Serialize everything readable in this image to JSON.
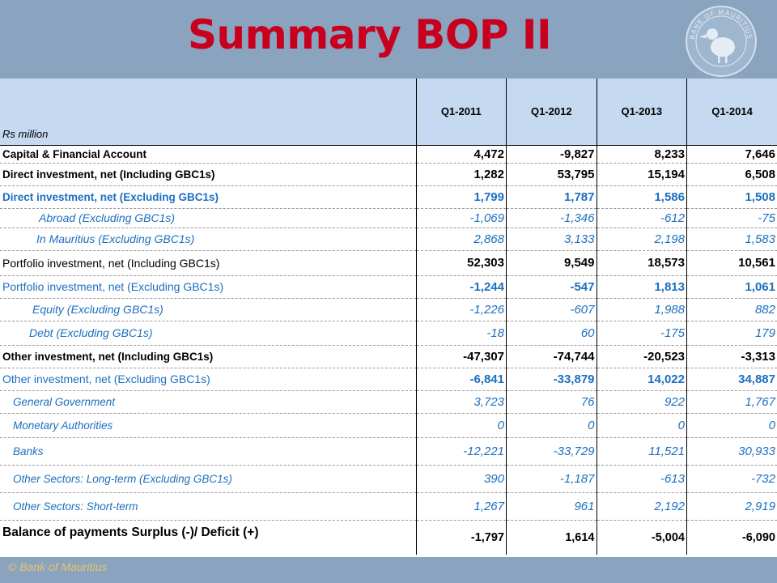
{
  "title": "Summary BOP II",
  "logo": {
    "icon": "bank-of-mauritius-seal-icon",
    "text": "BANK OF MAURITIUS"
  },
  "table": {
    "unit_label": "Rs million",
    "columns": [
      "Q1-2011",
      "Q1-2012",
      "Q1-2013",
      "Q1-2014"
    ],
    "rows": [
      {
        "label": "Capital & Financial Account",
        "values": [
          "4,472",
          "-9,827",
          "8,233",
          "7,646"
        ]
      },
      {
        "label": "Direct investment, net (Including GBC1s)",
        "values": [
          "1,282",
          "53,795",
          "15,194",
          "6,508"
        ]
      },
      {
        "label": "Direct investment, net (Excluding GBC1s)",
        "values": [
          "1,799",
          "1,787",
          "1,586",
          "1,508"
        ]
      },
      {
        "label": "Abroad  (Excluding GBC1s)",
        "values": [
          "-1,069",
          "-1,346",
          "-612",
          "-75"
        ]
      },
      {
        "label": "In Mauritius (Excluding GBC1s)",
        "values": [
          "2,868",
          "3,133",
          "2,198",
          "1,583"
        ]
      },
      {
        "label": "Portfolio investment, net  (Including GBC1s)",
        "values": [
          "52,303",
          "9,549",
          "18,573",
          "10,561"
        ]
      },
      {
        "label": "Portfolio investment, net  (Excluding GBC1s)",
        "values": [
          "-1,244",
          "-547",
          "1,813",
          "1,061"
        ]
      },
      {
        "label": "Equity (Excluding GBC1s)",
        "values": [
          "-1,226",
          "-607",
          "1,988",
          "882"
        ]
      },
      {
        "label": "Debt (Excluding GBC1s)",
        "values": [
          "-18",
          "60",
          "-175",
          "179"
        ]
      },
      {
        "label": "Other investment, net (Including GBC1s)",
        "values": [
          "-47,307",
          "-74,744",
          "-20,523",
          "-3,313"
        ]
      },
      {
        "label": "Other investment, net (Excluding GBC1s)",
        "values": [
          "-6,841",
          "-33,879",
          "14,022",
          "34,887"
        ]
      },
      {
        "label": "General Government",
        "values": [
          "3,723",
          "76",
          "922",
          "1,767"
        ]
      },
      {
        "label": "Monetary Authorities",
        "values": [
          "0",
          "0",
          "0",
          "0"
        ]
      },
      {
        "label": "Banks",
        "values": [
          "-12,221",
          "-33,729",
          "11,521",
          "30,933"
        ]
      },
      {
        "label": "Other Sectors: Long-term (Excluding GBC1s)",
        "values": [
          "390",
          "-1,187",
          "-613",
          "-732"
        ]
      },
      {
        "label": "Other Sectors: Short-term",
        "values": [
          "1,267",
          "961",
          "2,192",
          "2,919"
        ]
      },
      {
        "label": "Balance of payments Surplus (-)/ Deficit (+)",
        "values": [
          "-1,797",
          "1,614",
          "-5,004",
          "-6,090"
        ]
      }
    ]
  },
  "footer": "© Bank of Mauritius"
}
